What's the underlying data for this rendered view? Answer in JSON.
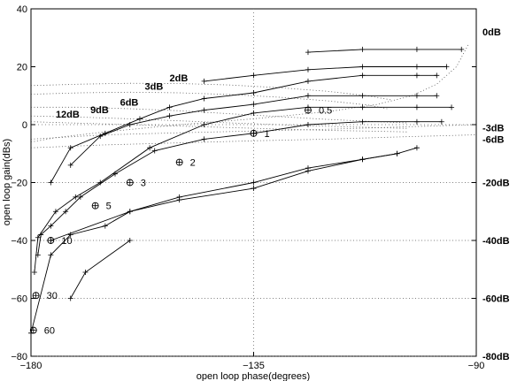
{
  "chart_data": {
    "type": "line",
    "title": "",
    "xlabel": "open loop phase(degrees)",
    "ylabel": "open loop gain(dBs)",
    "xlim": [
      -180,
      -90
    ],
    "ylim": [
      -80,
      40
    ],
    "grid": "dotted at x=-135 and y=0",
    "x_ticks": [
      {
        "value": -180,
        "label": "−180"
      },
      {
        "value": -135,
        "label": "−135"
      },
      {
        "value": -90,
        "label": "−90"
      }
    ],
    "y_ticks": [
      {
        "value": 40,
        "label": "40"
      },
      {
        "value": 20,
        "label": "20"
      },
      {
        "value": 0,
        "label": "0"
      },
      {
        "value": -20,
        "label": "−20"
      },
      {
        "value": -40,
        "label": "−40"
      },
      {
        "value": -60,
        "label": "−60"
      },
      {
        "value": -80,
        "label": "−80"
      }
    ],
    "closed_loop_gain_contours": [
      {
        "label": "0dB",
        "value": 0,
        "points": [
          [
            -180,
            -6
          ],
          [
            -175,
            -4.5
          ],
          [
            -165,
            -2.5
          ],
          [
            -150,
            0
          ],
          [
            -135,
            2
          ],
          [
            -120,
            4.5
          ],
          [
            -110,
            7
          ],
          [
            -103,
            10
          ],
          [
            -98,
            14
          ],
          [
            -94,
            20
          ],
          [
            -91.5,
            28
          ]
        ]
      },
      {
        "label": "2dB",
        "value": 2,
        "points": [
          [
            -180,
            13.5
          ],
          [
            -170,
            14
          ],
          [
            -160,
            14.3
          ],
          [
            -150,
            14.2
          ],
          [
            -140,
            13.7
          ],
          [
            -130,
            12.8
          ],
          [
            -120,
            11.5
          ],
          [
            -112,
            10
          ],
          [
            -107,
            8.5
          ]
        ]
      },
      {
        "label": "3dB",
        "value": 3,
        "points": [
          [
            -180,
            10.5
          ],
          [
            -170,
            11
          ],
          [
            -160,
            11.2
          ],
          [
            -150,
            11
          ],
          [
            -140,
            10.4
          ],
          [
            -130,
            9.5
          ],
          [
            -120,
            8.2
          ],
          [
            -112,
            6.8
          ],
          [
            -108,
            5.5
          ]
        ]
      },
      {
        "label": "6dB",
        "value": 6,
        "points": [
          [
            -180,
            6
          ],
          [
            -170,
            6
          ],
          [
            -160,
            5.5
          ],
          [
            -150,
            4.8
          ],
          [
            -140,
            3.8
          ],
          [
            -130,
            2.8
          ],
          [
            -120,
            1.8
          ],
          [
            -110,
            1
          ],
          [
            -104,
            0.6
          ]
        ]
      },
      {
        "label": "9dB",
        "value": 9,
        "points": [
          [
            -180,
            3
          ],
          [
            -170,
            2.6
          ],
          [
            -160,
            2
          ],
          [
            -150,
            1.3
          ],
          [
            -140,
            0.6
          ],
          [
            -130,
            0
          ],
          [
            -120,
            -0.6
          ],
          [
            -110,
            -1
          ],
          [
            -104,
            -1.3
          ]
        ]
      },
      {
        "label": "12dB",
        "value": 12,
        "points": [
          [
            -180,
            1
          ],
          [
            -170,
            0.5
          ],
          [
            -160,
            0
          ],
          [
            -150,
            -0.5
          ],
          [
            -140,
            -1
          ],
          [
            -130,
            -1.5
          ],
          [
            -120,
            -2
          ],
          [
            -110,
            -2.3
          ],
          [
            -104,
            -2.5
          ]
        ]
      },
      {
        "label": "-3dB",
        "value": -3,
        "points": [
          [
            -180,
            -5
          ],
          [
            -165,
            -3.5
          ],
          [
            -150,
            -2.8
          ],
          [
            -135,
            -2.2
          ],
          [
            -120,
            -1.6
          ],
          [
            -105,
            -0.8
          ],
          [
            -90,
            0
          ]
        ]
      },
      {
        "label": "-6dB",
        "value": -6,
        "points": [
          [
            -180,
            -8
          ],
          [
            -165,
            -7
          ],
          [
            -150,
            -6.3
          ],
          [
            -135,
            -5.6
          ],
          [
            -120,
            -5
          ],
          [
            -105,
            -4.2
          ],
          [
            -90,
            -3.5
          ]
        ]
      },
      {
        "label": "-20dB",
        "value": -20,
        "points": [
          [
            -180,
            -20
          ],
          [
            -90,
            -20
          ]
        ]
      },
      {
        "label": "-40dB",
        "value": -40,
        "points": [
          [
            -180,
            -40
          ],
          [
            -90,
            -40
          ]
        ]
      },
      {
        "label": "-60dB",
        "value": -60,
        "points": [
          [
            -180,
            -60
          ],
          [
            -90,
            -60
          ]
        ]
      },
      {
        "label": "-80dB",
        "value": -80,
        "points": [
          [
            -180,
            -80
          ],
          [
            -90,
            -80
          ]
        ]
      }
    ],
    "curves": [
      {
        "points": [
          [
            -179.3,
            -51
          ],
          [
            -178.6,
            -39
          ],
          [
            -175,
            -30
          ],
          [
            -171,
            -25
          ],
          [
            -166,
            -20
          ],
          [
            -156,
            -8
          ],
          [
            -145,
            0
          ],
          [
            -135,
            4
          ],
          [
            -124,
            6
          ],
          [
            -113,
            6
          ],
          [
            -102,
            6
          ],
          [
            -95,
            6
          ]
        ]
      },
      {
        "points": [
          [
            -178.6,
            -45
          ],
          [
            -178,
            -38
          ],
          [
            -176,
            -35
          ],
          [
            -173,
            -30
          ],
          [
            -170,
            -25
          ],
          [
            -163,
            -17
          ],
          [
            -155,
            -9
          ],
          [
            -145,
            -5
          ],
          [
            -135,
            -3
          ],
          [
            -124,
            0
          ],
          [
            -113,
            1
          ],
          [
            -102,
            1
          ],
          [
            -97,
            1
          ]
        ]
      },
      {
        "points": [
          [
            -176,
            -20
          ],
          [
            -172,
            -8
          ],
          [
            -165,
            -3
          ],
          [
            -158,
            2
          ],
          [
            -152,
            6
          ],
          [
            -145,
            9
          ],
          [
            -135,
            11
          ],
          [
            -124,
            15
          ],
          [
            -113,
            17
          ],
          [
            -102,
            17
          ],
          [
            -98,
            17
          ]
        ]
      },
      {
        "points": [
          [
            -172,
            -14
          ],
          [
            -166,
            -4
          ],
          [
            -160,
            0
          ],
          [
            -152,
            3
          ],
          [
            -145,
            5
          ],
          [
            -135,
            7
          ],
          [
            -124,
            10
          ],
          [
            -113,
            10
          ],
          [
            -102,
            10
          ],
          [
            -98,
            10
          ]
        ]
      },
      {
        "points": [
          [
            -145,
            15
          ],
          [
            -135,
            17
          ],
          [
            -124,
            19
          ],
          [
            -113,
            20
          ],
          [
            -102,
            20
          ],
          [
            -96,
            20
          ]
        ]
      },
      {
        "points": [
          [
            -124,
            25
          ],
          [
            -113,
            26
          ],
          [
            -102,
            26
          ],
          [
            -93,
            26
          ]
        ]
      },
      {
        "points": [
          [
            -172,
            -60
          ],
          [
            -169,
            -51
          ],
          [
            -160,
            -40
          ]
        ]
      },
      {
        "points": [
          [
            -180,
            -72
          ],
          [
            -176,
            -45
          ],
          [
            -172,
            -38
          ],
          [
            -165,
            -35
          ],
          [
            -160,
            -30
          ],
          [
            -150,
            -25
          ],
          [
            -135,
            -20
          ],
          [
            -124,
            -15
          ],
          [
            -113,
            -12
          ],
          [
            -106,
            -10
          ]
        ]
      },
      {
        "points": [
          [
            -176,
            -40
          ],
          [
            -160,
            -30
          ],
          [
            -150,
            -26
          ],
          [
            -135,
            -22
          ],
          [
            -124,
            -16
          ],
          [
            -113,
            -12
          ],
          [
            -106,
            -10
          ],
          [
            -102,
            -8
          ]
        ]
      }
    ],
    "frequency_labels": [
      {
        "label": "0.5",
        "x": -124,
        "y": 5
      },
      {
        "label": "1",
        "x": -135,
        "y": -3
      },
      {
        "label": "2",
        "x": -150,
        "y": -13
      },
      {
        "label": "3",
        "x": -160,
        "y": -20
      },
      {
        "label": "5",
        "x": -167,
        "y": -28
      },
      {
        "label": "10",
        "x": -176,
        "y": -40
      },
      {
        "label": "30",
        "x": -179,
        "y": -59
      },
      {
        "label": "60",
        "x": -179.5,
        "y": -71
      }
    ]
  },
  "text": {
    "xlabel": "open loop phase(degrees)",
    "ylabel": "open loop gain(dBs)"
  }
}
